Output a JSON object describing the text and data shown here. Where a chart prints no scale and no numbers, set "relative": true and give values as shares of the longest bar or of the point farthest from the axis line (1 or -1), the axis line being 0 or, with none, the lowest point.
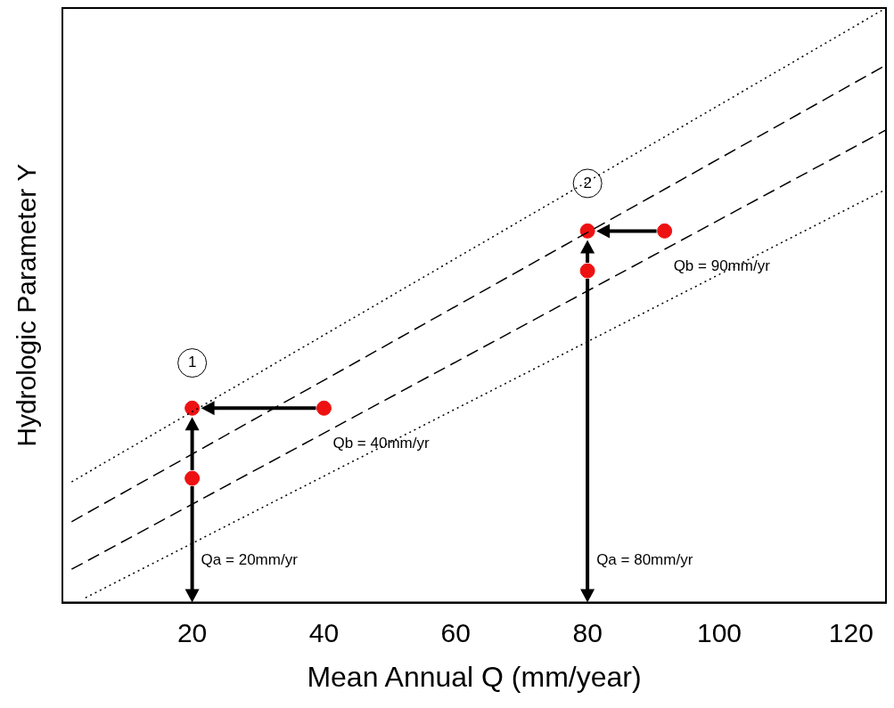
{
  "chart_data": {
    "type": "scatter",
    "relative": true,
    "xlabel": "Mean Annual Q (mm/year)",
    "ylabel": "Hydrologic Parameter Y",
    "xlim": [
      0.3,
      125.3
    ],
    "xticks": [
      20,
      40,
      60,
      80,
      100,
      120
    ],
    "tick_labels": "x",
    "grid": false,
    "legend": false,
    "marker": "circle",
    "series": [
      {
        "type": "line",
        "marker": "none",
        "color": "#000000",
        "line_style": "dotted",
        "x": [
          1.7,
          125.3
        ],
        "values": [
          0.203,
          1.0
        ]
      },
      {
        "type": "line",
        "marker": "none",
        "color": "#000000",
        "line_style": "dashed",
        "x": [
          1.7,
          125.3
        ],
        "values": [
          0.136,
          0.904
        ]
      },
      {
        "type": "line",
        "marker": "none",
        "color": "#000000",
        "line_style": "dashed",
        "x": [
          1.7,
          125.3
        ],
        "values": [
          0.056,
          0.795
        ]
      },
      {
        "type": "line",
        "marker": "none",
        "color": "#000000",
        "line_style": "dotted",
        "x": [
          3.8,
          125.3
        ],
        "values": [
          0.008,
          0.695
        ]
      },
      {
        "type": "scatter",
        "color": "#ee1111",
        "x": [
          20,
          20,
          40
        ],
        "values": [
          0.209,
          0.327,
          0.327
        ]
      },
      {
        "type": "scatter",
        "color": "#ee1111",
        "x": [
          80,
          80,
          91.7
        ],
        "values": [
          0.558,
          0.625,
          0.625
        ]
      }
    ],
    "annotations": [
      {
        "text": "1",
        "x": 20,
        "y": 0.403
      },
      {
        "text": "2",
        "x": 80,
        "y": 0.705
      },
      {
        "text": "Qb = 40mm/yr",
        "x": 40,
        "y": 0.327
      },
      {
        "text": "Qb = 90mm/yr",
        "x": 91.7,
        "y": 0.625
      },
      "Qa = 20mm/yr",
      "Qa = 80mm/yr"
    ]
  }
}
